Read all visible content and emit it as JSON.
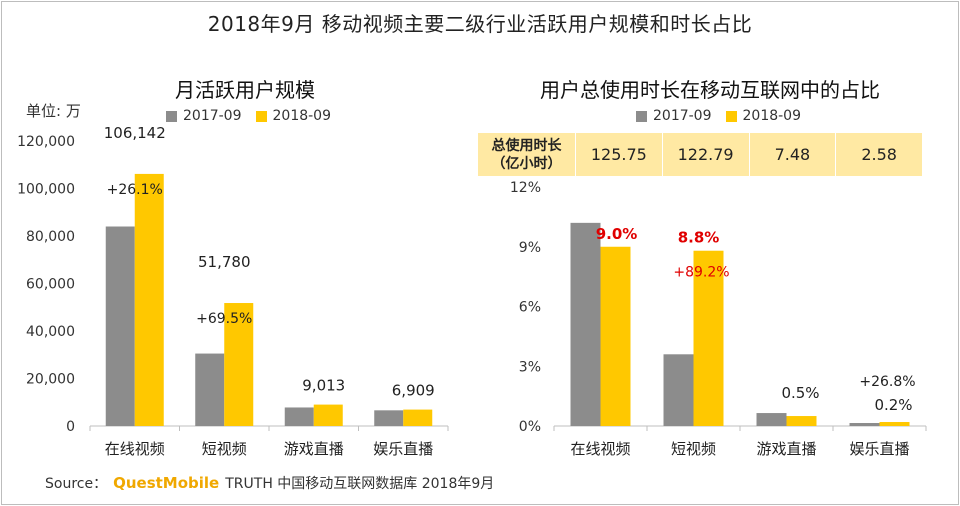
{
  "title": "2018年9月 移动视频主要二级行业活跃用户规模和时长占比",
  "colors": {
    "s2017": "#8c8c8c",
    "s2018": "#ffc800",
    "growth_red": "#e00000"
  },
  "legend": [
    "2017-09",
    "2018-09"
  ],
  "source": {
    "label": "Source：",
    "brand": "QuestMobile",
    "text": "TRUTH 中国移动互联网数据库 2018年9月"
  },
  "duration_table": {
    "header_line1": "总使用时长",
    "header_line2": "（亿小时）",
    "values": [
      "125.75",
      "122.79",
      "7.48",
      "2.58"
    ]
  },
  "chart_data": [
    {
      "type": "bar",
      "title": "月活跃用户规模",
      "ylabel": "单位: 万",
      "categories": [
        "在线视频",
        "短视频",
        "游戏直播",
        "娱乐直播"
      ],
      "ylim": [
        0,
        120000
      ],
      "yticks": [
        0,
        20000,
        40000,
        60000,
        80000,
        100000,
        120000
      ],
      "ytick_labels": [
        "0",
        "20,000",
        "40,000",
        "60,000",
        "80,000",
        "100,000",
        "120,000"
      ],
      "series": [
        {
          "name": "2017-09",
          "values": [
            84000,
            30500,
            7800,
            6600
          ]
        },
        {
          "name": "2018-09",
          "values": [
            106142,
            51780,
            9013,
            6909
          ]
        }
      ],
      "data_labels": [
        "106,142",
        "51,780",
        "9,013",
        "6,909"
      ],
      "growth_labels": [
        "+26.1%",
        "+69.5%",
        "",
        ""
      ]
    },
    {
      "type": "bar",
      "title": "用户总使用时长在移动互联网中的占比",
      "categories": [
        "在线视频",
        "短视频",
        "游戏直播",
        "娱乐直播"
      ],
      "ylim": [
        0,
        12
      ],
      "yticks": [
        0,
        3,
        6,
        9,
        12
      ],
      "ytick_labels": [
        "0%",
        "3%",
        "6%",
        "9%",
        "12%"
      ],
      "series": [
        {
          "name": "2017-09",
          "values": [
            10.2,
            3.6,
            0.65,
            0.15
          ]
        },
        {
          "name": "2018-09",
          "values": [
            9.0,
            8.8,
            0.5,
            0.2
          ]
        }
      ],
      "data_labels": [
        "9.0%",
        "8.8%",
        "0.5%",
        "0.2%"
      ],
      "data_label_emphasis": [
        true,
        true,
        false,
        false
      ],
      "growth_labels": [
        "",
        "+89.2%",
        "",
        "+26.8%"
      ]
    }
  ]
}
